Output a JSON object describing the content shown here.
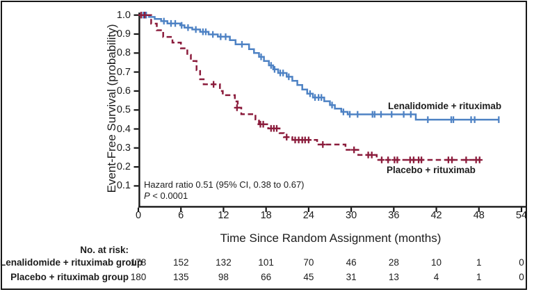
{
  "chart_data": {
    "type": "line",
    "subtype": "kaplan-meier-step-curves",
    "title": "",
    "y_label": "Event-Free Survival (probability)",
    "x_label": "Time Since Random Assignment (months)",
    "x_range": [
      0,
      54
    ],
    "y_range": [
      0,
      1.0
    ],
    "grid": false,
    "x_ticks": [
      0,
      6,
      12,
      18,
      24,
      30,
      36,
      42,
      48,
      54
    ],
    "x_tick_labels": [
      "0",
      "6",
      "12",
      "18",
      "24",
      "30",
      "36",
      "42",
      "48",
      "54"
    ],
    "y_ticks": [
      1.0,
      0.9,
      0.8,
      0.7,
      0.6,
      0.5,
      0.4,
      0.3,
      0.2,
      0.1
    ],
    "y_tick_labels": [
      "1.0",
      "0.9",
      "0.8",
      "0.7",
      "0.6",
      "0.5",
      "0.4",
      "0.3",
      "0.2",
      "0.1"
    ],
    "annotation": {
      "line1": "Hazard ratio 0.51 (95% CI, 0.38 to 0.67)",
      "p_italic": "P",
      "p_rest": " < 0.0001"
    },
    "series": [
      {
        "name": "Lenalidomide + rituximab",
        "color": "#4e82c4",
        "line": "solid",
        "censor_shape": "tick",
        "end_month": 50.8,
        "steps": [
          [
            0,
            1.0
          ],
          [
            1.5,
            0.99
          ],
          [
            2.3,
            0.98
          ],
          [
            3.2,
            0.968
          ],
          [
            4.1,
            0.956
          ],
          [
            5.9,
            0.946
          ],
          [
            6.5,
            0.934
          ],
          [
            7.6,
            0.924
          ],
          [
            8.7,
            0.912
          ],
          [
            9.9,
            0.898
          ],
          [
            11.2,
            0.886
          ],
          [
            12.9,
            0.868
          ],
          [
            13.7,
            0.846
          ],
          [
            15.6,
            0.82
          ],
          [
            16.3,
            0.8
          ],
          [
            17.0,
            0.78
          ],
          [
            17.7,
            0.758
          ],
          [
            18.4,
            0.735
          ],
          [
            19.0,
            0.714
          ],
          [
            19.7,
            0.695
          ],
          [
            20.9,
            0.675
          ],
          [
            21.7,
            0.654
          ],
          [
            22.4,
            0.632
          ],
          [
            23.1,
            0.608
          ],
          [
            23.8,
            0.586
          ],
          [
            24.6,
            0.566
          ],
          [
            26.2,
            0.546
          ],
          [
            27.0,
            0.526
          ],
          [
            27.7,
            0.507
          ],
          [
            28.6,
            0.49
          ],
          [
            29.5,
            0.477
          ],
          [
            39.1,
            0.449
          ]
        ],
        "censors": [
          [
            0.7,
            1.0
          ],
          [
            1.1,
            1.0
          ],
          [
            3.6,
            0.968
          ],
          [
            4.6,
            0.956
          ],
          [
            5.2,
            0.956
          ],
          [
            6.1,
            0.946
          ],
          [
            7.0,
            0.934
          ],
          [
            8.1,
            0.924
          ],
          [
            9.1,
            0.912
          ],
          [
            9.5,
            0.912
          ],
          [
            10.5,
            0.898
          ],
          [
            11.6,
            0.886
          ],
          [
            12.3,
            0.886
          ],
          [
            14.6,
            0.846
          ],
          [
            17.3,
            0.78
          ],
          [
            18.7,
            0.735
          ],
          [
            19.2,
            0.714
          ],
          [
            20.0,
            0.695
          ],
          [
            20.4,
            0.695
          ],
          [
            21.2,
            0.675
          ],
          [
            24.2,
            0.586
          ],
          [
            24.9,
            0.566
          ],
          [
            25.4,
            0.566
          ],
          [
            25.8,
            0.566
          ],
          [
            27.3,
            0.526
          ],
          [
            28.9,
            0.49
          ],
          [
            29.8,
            0.477
          ],
          [
            30.9,
            0.477
          ],
          [
            33.0,
            0.477
          ],
          [
            33.3,
            0.477
          ],
          [
            34.2,
            0.477
          ],
          [
            35.7,
            0.477
          ],
          [
            37.4,
            0.477
          ],
          [
            38.4,
            0.477
          ],
          [
            40.8,
            0.449
          ],
          [
            44.1,
            0.449
          ],
          [
            44.4,
            0.449
          ],
          [
            46.9,
            0.449
          ],
          [
            47.4,
            0.449
          ],
          [
            50.8,
            0.449
          ]
        ]
      },
      {
        "name": "Placebo + rituximab",
        "color": "#8b1c3c",
        "line": "dashed",
        "censor_shape": "plus",
        "end_month": 48.2,
        "steps": [
          [
            0,
            1.0
          ],
          [
            1.8,
            0.955
          ],
          [
            2.6,
            0.92
          ],
          [
            3.5,
            0.885
          ],
          [
            4.8,
            0.855
          ],
          [
            6.0,
            0.825
          ],
          [
            6.9,
            0.79
          ],
          [
            7.4,
            0.758
          ],
          [
            8.2,
            0.71
          ],
          [
            8.7,
            0.662
          ],
          [
            9.2,
            0.635
          ],
          [
            11.5,
            0.6
          ],
          [
            11.9,
            0.578
          ],
          [
            13.6,
            0.545
          ],
          [
            14.0,
            0.512
          ],
          [
            14.5,
            0.478
          ],
          [
            16.5,
            0.45
          ],
          [
            17.0,
            0.425
          ],
          [
            18.3,
            0.403
          ],
          [
            19.9,
            0.378
          ],
          [
            20.5,
            0.357
          ],
          [
            21.7,
            0.342
          ],
          [
            25.2,
            0.318
          ],
          [
            29.2,
            0.29
          ],
          [
            31.0,
            0.263
          ],
          [
            33.6,
            0.237
          ]
        ],
        "censors": [
          [
            0.4,
            1.0
          ],
          [
            0.9,
            1.0
          ],
          [
            10.6,
            0.635
          ],
          [
            13.9,
            0.512
          ],
          [
            17.2,
            0.425
          ],
          [
            17.6,
            0.425
          ],
          [
            18.7,
            0.403
          ],
          [
            19.1,
            0.403
          ],
          [
            19.5,
            0.403
          ],
          [
            20.9,
            0.357
          ],
          [
            22.1,
            0.342
          ],
          [
            22.6,
            0.342
          ],
          [
            23.1,
            0.342
          ],
          [
            23.5,
            0.342
          ],
          [
            24.0,
            0.342
          ],
          [
            26.0,
            0.318
          ],
          [
            30.4,
            0.29
          ],
          [
            32.4,
            0.263
          ],
          [
            32.9,
            0.263
          ],
          [
            34.3,
            0.237
          ],
          [
            35.2,
            0.237
          ],
          [
            36.1,
            0.237
          ],
          [
            36.5,
            0.237
          ],
          [
            38.3,
            0.237
          ],
          [
            38.8,
            0.237
          ],
          [
            39.5,
            0.237
          ],
          [
            39.9,
            0.237
          ],
          [
            43.7,
            0.237
          ],
          [
            44.2,
            0.237
          ],
          [
            46.2,
            0.237
          ],
          [
            47.6,
            0.237
          ],
          [
            48.1,
            0.237
          ]
        ]
      }
    ]
  },
  "risk_table": {
    "header": "No. at risk:",
    "time_points": [
      0,
      6,
      12,
      18,
      24,
      30,
      36,
      42,
      48,
      54
    ],
    "rows": [
      {
        "label": "Lenalidomide + rituximab group",
        "counts": [
          "178",
          "152",
          "132",
          "101",
          "70",
          "46",
          "28",
          "10",
          "1",
          "0"
        ]
      },
      {
        "label": "Placebo + rituximab group",
        "counts": [
          "180",
          "135",
          "98",
          "66",
          "45",
          "31",
          "13",
          "4",
          "1",
          "0"
        ]
      }
    ]
  }
}
